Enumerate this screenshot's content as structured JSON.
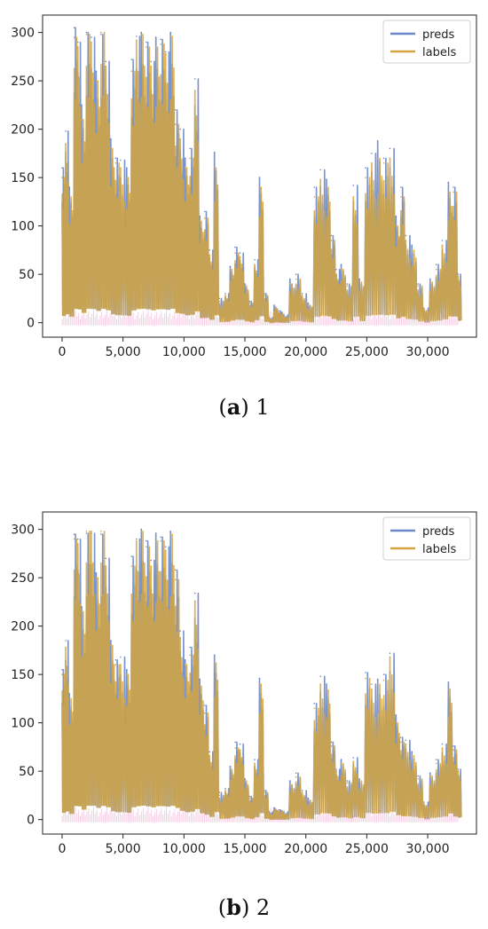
{
  "colors": {
    "preds": "#6c88c8",
    "labels": "#d4a440",
    "noise": "#f2b8d8",
    "axis": "#222222"
  },
  "legend": {
    "preds_label": "preds",
    "labels_label": "labels",
    "placement": "upper-right"
  },
  "chart_data": [
    {
      "type": "line",
      "title": "",
      "caption_letter": "a",
      "caption_suffix": ") 1",
      "caption_prefix": "(",
      "x_ticks": [
        "0",
        "5,000",
        "10,000",
        "15,000",
        "20,000",
        "25,000",
        "30,000"
      ],
      "x_tick_values": [
        0,
        5000,
        10000,
        15000,
        20000,
        25000,
        30000
      ],
      "y_ticks": [
        "0",
        "50",
        "100",
        "150",
        "200",
        "250",
        "300"
      ],
      "y_tick_values": [
        0,
        50,
        100,
        150,
        200,
        250,
        300
      ],
      "xlim": [
        -1600,
        34000
      ],
      "ylim": [
        -15,
        318
      ],
      "series": [
        {
          "name": "preds",
          "x": [
            0,
            300,
            600,
            1000,
            1300,
            1600,
            2000,
            2400,
            2800,
            3200,
            3600,
            4000,
            4400,
            4800,
            5300,
            5700,
            6100,
            6500,
            6900,
            7300,
            7700,
            8100,
            8500,
            8900,
            9300,
            9700,
            10100,
            10500,
            10900,
            11300,
            11700,
            12100,
            12500,
            12900,
            13400,
            13800,
            14200,
            14600,
            15000,
            15400,
            15800,
            16200,
            16600,
            17000,
            17400,
            17800,
            18200,
            18700,
            19200,
            19700,
            20200,
            20700,
            21200,
            21700,
            22100,
            22500,
            22900,
            23400,
            23900,
            24400,
            24900,
            25400,
            25900,
            26400,
            26900,
            27400,
            27800,
            28200,
            28700,
            29200,
            29700,
            30200,
            30700,
            31200,
            31700,
            32100,
            32500
          ],
          "values": [
            160,
            198,
            140,
            305,
            290,
            225,
            300,
            295,
            260,
            298,
            270,
            190,
            170,
            168,
            160,
            272,
            296,
            300,
            290,
            270,
            295,
            293,
            280,
            300,
            220,
            200,
            170,
            180,
            252,
            110,
            115,
            75,
            176,
            25,
            30,
            58,
            78,
            72,
            40,
            22,
            65,
            150,
            30,
            5,
            18,
            12,
            8,
            45,
            50,
            30,
            20,
            140,
            158,
            148,
            90,
            55,
            60,
            40,
            142,
            45,
            160,
            175,
            188,
            170,
            180,
            110,
            140,
            90,
            80,
            40,
            15,
            45,
            60,
            85,
            145,
            140,
            50
          ]
        },
        {
          "name": "labels",
          "x": [
            0,
            300,
            600,
            1000,
            1300,
            1600,
            2000,
            2400,
            2800,
            3200,
            3600,
            4000,
            4400,
            4800,
            5300,
            5700,
            6100,
            6500,
            6900,
            7300,
            7700,
            8100,
            8500,
            8900,
            9300,
            9700,
            10100,
            10500,
            10900,
            11300,
            11700,
            12100,
            12500,
            12900,
            13400,
            13800,
            14200,
            14600,
            15000,
            15400,
            15800,
            16200,
            16600,
            17000,
            17400,
            17800,
            18200,
            18700,
            19200,
            19700,
            20200,
            20700,
            21200,
            21700,
            22100,
            22500,
            22900,
            23400,
            23900,
            24400,
            24900,
            25400,
            25900,
            26400,
            26900,
            27400,
            27800,
            28200,
            28700,
            29200,
            29700,
            30200,
            30700,
            31200,
            31700,
            32100,
            32500
          ],
          "values": [
            150,
            185,
            130,
            295,
            285,
            210,
            298,
            290,
            250,
            300,
            265,
            180,
            165,
            160,
            150,
            260,
            292,
            298,
            285,
            265,
            285,
            288,
            278,
            296,
            205,
            190,
            160,
            170,
            240,
            105,
            108,
            70,
            160,
            22,
            28,
            55,
            72,
            68,
            38,
            20,
            60,
            140,
            28,
            4,
            15,
            10,
            6,
            40,
            45,
            28,
            18,
            130,
            148,
            140,
            85,
            50,
            55,
            38,
            130,
            42,
            150,
            165,
            170,
            165,
            170,
            100,
            130,
            85,
            75,
            38,
            14,
            42,
            55,
            80,
            135,
            135,
            48
          ]
        }
      ]
    },
    {
      "type": "line",
      "title": "",
      "caption_letter": "b",
      "caption_suffix": ") 2",
      "caption_prefix": "(",
      "x_ticks": [
        "0",
        "5,000",
        "10,000",
        "15,000",
        "20,000",
        "25,000",
        "30,000"
      ],
      "x_tick_values": [
        0,
        5000,
        10000,
        15000,
        20000,
        25000,
        30000
      ],
      "y_ticks": [
        "0",
        "50",
        "100",
        "150",
        "200",
        "250",
        "300"
      ],
      "y_tick_values": [
        0,
        50,
        100,
        150,
        200,
        250,
        300
      ],
      "xlim": [
        -1600,
        34000
      ],
      "ylim": [
        -15,
        318
      ],
      "series": [
        {
          "name": "preds",
          "x": [
            0,
            300,
            600,
            1000,
            1300,
            1600,
            2000,
            2400,
            2800,
            3200,
            3600,
            4000,
            4400,
            4800,
            5300,
            5700,
            6100,
            6500,
            6900,
            7300,
            7700,
            8100,
            8500,
            8900,
            9300,
            9700,
            10100,
            10500,
            10900,
            11300,
            11700,
            12100,
            12500,
            12900,
            13400,
            13800,
            14200,
            14600,
            15000,
            15400,
            15800,
            16200,
            16600,
            17000,
            17400,
            17800,
            18200,
            18700,
            19200,
            19700,
            20200,
            20700,
            21200,
            21700,
            22100,
            22500,
            22900,
            23400,
            23900,
            24400,
            24900,
            25400,
            25900,
            26400,
            26900,
            27400,
            27800,
            28200,
            28700,
            29200,
            29700,
            30200,
            30700,
            31200,
            31700,
            32100,
            32500
          ],
          "values": [
            155,
            185,
            130,
            295,
            290,
            220,
            296,
            296,
            255,
            295,
            270,
            185,
            165,
            168,
            155,
            272,
            290,
            300,
            288,
            268,
            296,
            292,
            282,
            298,
            258,
            195,
            165,
            178,
            234,
            145,
            118,
            70,
            170,
            28,
            32,
            55,
            80,
            78,
            42,
            24,
            62,
            146,
            30,
            8,
            12,
            10,
            8,
            40,
            48,
            30,
            22,
            120,
            148,
            140,
            80,
            52,
            62,
            40,
            64,
            42,
            152,
            140,
            145,
            150,
            172,
            108,
            85,
            82,
            70,
            45,
            18,
            48,
            62,
            78,
            142,
            76,
            52
          ]
        },
        {
          "name": "labels",
          "x": [
            0,
            300,
            600,
            1000,
            1300,
            1600,
            2000,
            2400,
            2800,
            3200,
            3600,
            4000,
            4400,
            4800,
            5300,
            5700,
            6100,
            6500,
            6900,
            7300,
            7700,
            8100,
            8500,
            8900,
            9300,
            9700,
            10100,
            10500,
            10900,
            11300,
            11700,
            12100,
            12500,
            12900,
            13400,
            13800,
            14200,
            14600,
            15000,
            15400,
            15800,
            16200,
            16600,
            17000,
            17400,
            17800,
            18200,
            18700,
            19200,
            19700,
            20200,
            20700,
            21200,
            21700,
            22100,
            22500,
            22900,
            23400,
            23900,
            24400,
            24900,
            25400,
            25900,
            26400,
            26900,
            27400,
            27800,
            28200,
            28700,
            29200,
            29700,
            30200,
            30700,
            31200,
            31700,
            32100,
            32500
          ],
          "values": [
            150,
            178,
            125,
            290,
            285,
            215,
            298,
            298,
            250,
            298,
            262,
            180,
            160,
            160,
            150,
            262,
            288,
            298,
            282,
            262,
            288,
            288,
            278,
            295,
            248,
            188,
            160,
            170,
            226,
            138,
            110,
            66,
            162,
            25,
            30,
            52,
            74,
            72,
            40,
            22,
            58,
            140,
            28,
            6,
            10,
            9,
            6,
            36,
            44,
            28,
            20,
            115,
            140,
            134,
            76,
            50,
            58,
            38,
            60,
            40,
            146,
            135,
            140,
            144,
            168,
            100,
            80,
            78,
            66,
            42,
            16,
            45,
            58,
            74,
            135,
            72,
            50
          ]
        }
      ]
    }
  ]
}
